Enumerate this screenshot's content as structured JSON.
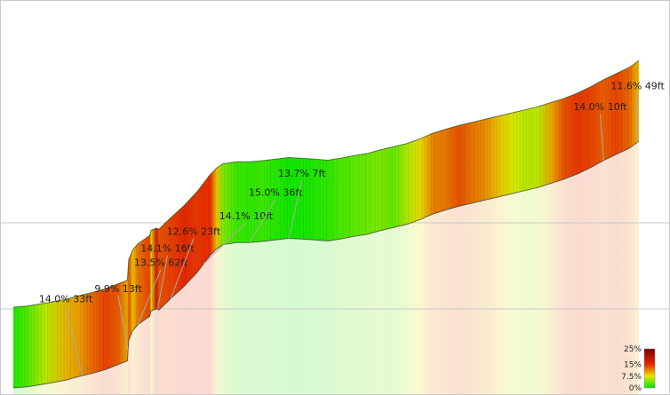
{
  "chart_data": {
    "type": "area",
    "title": "",
    "xlabel": "",
    "ylabel": "",
    "grid": true,
    "legend": "bottom-right",
    "color_scale": {
      "labels": [
        "25%",
        "15%",
        "7.5%",
        "0%"
      ],
      "stops": [
        {
          "grade": 0,
          "color": "#00e600"
        },
        {
          "grade": 7.5,
          "color": "#e6e600"
        },
        {
          "grade": 15,
          "color": "#e62a00"
        },
        {
          "grade": 25,
          "color": "#7a0000"
        }
      ]
    },
    "profile": {
      "distance_units": "relative",
      "x": [
        0,
        2,
        5,
        8,
        10,
        12,
        14,
        16,
        17.4,
        17.6,
        18.2,
        19,
        20.8,
        21,
        21.8,
        22.2,
        24,
        26,
        28,
        30,
        31,
        32,
        34,
        36,
        38,
        40,
        42,
        45,
        48,
        50,
        52,
        54,
        56,
        58,
        60,
        62,
        64,
        66,
        68,
        70,
        72,
        74,
        76,
        78,
        80,
        82,
        84,
        86,
        88,
        90,
        92,
        94,
        95.4
      ],
      "elevation": [
        0,
        2,
        8,
        15,
        22,
        28,
        35,
        45,
        52,
        92,
        110,
        122,
        138,
        148,
        152,
        150,
        172,
        195,
        222,
        255,
        268,
        276,
        280,
        280,
        282,
        285,
        288,
        286,
        283,
        287,
        292,
        296,
        303,
        309,
        315,
        324,
        335,
        343,
        350,
        356,
        362,
        368,
        374,
        380,
        386,
        394,
        402,
        412,
        424,
        438,
        450,
        462,
        475
      ],
      "grade": [
        1,
        2.5,
        6,
        9.5,
        10.5,
        12.5,
        14,
        13,
        10,
        13.5,
        9,
        12,
        14.1,
        8,
        18,
        13.5,
        14.1,
        15.5,
        14.5,
        15,
        9,
        4,
        2,
        1.5,
        2,
        1.2,
        0.6,
        0.8,
        1.5,
        2.5,
        3,
        3.5,
        4,
        3.2,
        5.5,
        8,
        11.5,
        12,
        13.5,
        12,
        11,
        9,
        7,
        6,
        6,
        10,
        13.5,
        14.5,
        14,
        13,
        14,
        12.5,
        9
      ]
    },
    "annotations": [
      {
        "text": "14.0% 33ft",
        "x": 10.5,
        "label_x": 8,
        "label_height": 165
      },
      {
        "text": "9.9% 13ft",
        "x": 17.5,
        "label_x": 16,
        "label_height": 185
      },
      {
        "text": "13.5% 62ft",
        "x": 19,
        "label_x": 22.5,
        "label_height": 235
      },
      {
        "text": "14.1% 16ft",
        "x": 22,
        "label_x": 23.5,
        "label_height": 262
      },
      {
        "text": "12.6% 23ft",
        "x": 24,
        "label_x": 27.5,
        "label_height": 295
      },
      {
        "text": "14.1% 10ft",
        "x": 29,
        "label_x": 35.5,
        "label_height": 325
      },
      {
        "text": "15.0% 36ft",
        "x": 36,
        "label_x": 40,
        "label_height": 370
      },
      {
        "text": "13.7% 7ft",
        "x": 42,
        "label_x": 44,
        "label_height": 407
      },
      {
        "text": "14.0% 10ft",
        "x": 90,
        "label_x": 89.5,
        "label_height": 535
      },
      {
        "text": "11.6% 49ft",
        "x": 95.2,
        "label_x": 95.2,
        "label_height": 575
      }
    ]
  }
}
